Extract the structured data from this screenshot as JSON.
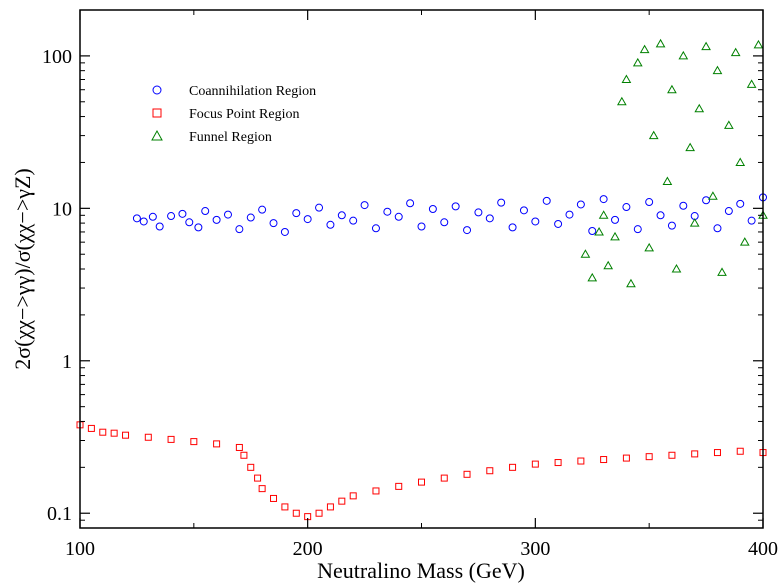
{
  "chart_data": {
    "type": "scatter",
    "title": "",
    "xlabel": "Neutralino Mass (GeV)",
    "ylabel": "2σ(χχ−>γγ)/σ(χχ−>γZ)",
    "xlim": [
      100,
      400
    ],
    "ylim": [
      0.08,
      200
    ],
    "yscale": "log",
    "grid": false,
    "legend_position": "upper-left",
    "x_ticks": [
      100,
      200,
      300,
      400
    ],
    "x_tick_labels": [
      "100",
      "200",
      "300",
      "400"
    ],
    "y_ticks": [
      0.1,
      1,
      10,
      100
    ],
    "y_tick_labels": [
      "0.1",
      "1",
      "10",
      "100"
    ],
    "series": [
      {
        "name": "Coannihilation Region",
        "marker": "circle",
        "color": "#0000ff",
        "x_range": [
          125,
          400
        ],
        "y_range": [
          6.5,
          12
        ],
        "points": [
          [
            125,
            8.6
          ],
          [
            128,
            8.2
          ],
          [
            132,
            8.8
          ],
          [
            135,
            7.6
          ],
          [
            140,
            8.9
          ],
          [
            145,
            9.2
          ],
          [
            148,
            8.1
          ],
          [
            152,
            7.5
          ],
          [
            155,
            9.6
          ],
          [
            160,
            8.4
          ],
          [
            165,
            9.1
          ],
          [
            170,
            7.3
          ],
          [
            175,
            8.7
          ],
          [
            180,
            9.8
          ],
          [
            185,
            8.0
          ],
          [
            190,
            7.0
          ],
          [
            195,
            9.3
          ],
          [
            200,
            8.5
          ],
          [
            205,
            10.1
          ],
          [
            210,
            7.8
          ],
          [
            215,
            9.0
          ],
          [
            220,
            8.3
          ],
          [
            225,
            10.5
          ],
          [
            230,
            7.4
          ],
          [
            235,
            9.5
          ],
          [
            240,
            8.8
          ],
          [
            245,
            10.8
          ],
          [
            250,
            7.6
          ],
          [
            255,
            9.9
          ],
          [
            260,
            8.1
          ],
          [
            265,
            10.3
          ],
          [
            270,
            7.2
          ],
          [
            275,
            9.4
          ],
          [
            280,
            8.6
          ],
          [
            285,
            10.9
          ],
          [
            290,
            7.5
          ],
          [
            295,
            9.7
          ],
          [
            300,
            8.2
          ],
          [
            305,
            11.2
          ],
          [
            310,
            7.9
          ],
          [
            315,
            9.1
          ],
          [
            320,
            10.6
          ],
          [
            325,
            7.1
          ],
          [
            330,
            11.5
          ],
          [
            335,
            8.4
          ],
          [
            340,
            10.2
          ],
          [
            345,
            7.3
          ],
          [
            350,
            11.0
          ],
          [
            355,
            9.0
          ],
          [
            360,
            7.7
          ],
          [
            365,
            10.4
          ],
          [
            370,
            8.9
          ],
          [
            375,
            11.3
          ],
          [
            380,
            7.4
          ],
          [
            385,
            9.6
          ],
          [
            390,
            10.7
          ],
          [
            395,
            8.3
          ],
          [
            400,
            11.8
          ]
        ]
      },
      {
        "name": "Focus Point Region",
        "marker": "square",
        "color": "#ff0000",
        "x_range": [
          100,
          400
        ],
        "y_range": [
          0.09,
          0.39
        ],
        "points": [
          [
            100,
            0.38
          ],
          [
            105,
            0.36
          ],
          [
            110,
            0.34
          ],
          [
            115,
            0.335
          ],
          [
            120,
            0.325
          ],
          [
            130,
            0.315
          ],
          [
            140,
            0.305
          ],
          [
            150,
            0.295
          ],
          [
            160,
            0.285
          ],
          [
            170,
            0.27
          ],
          [
            172,
            0.24
          ],
          [
            175,
            0.2
          ],
          [
            178,
            0.17
          ],
          [
            180,
            0.145
          ],
          [
            185,
            0.125
          ],
          [
            190,
            0.11
          ],
          [
            195,
            0.1
          ],
          [
            200,
            0.095
          ],
          [
            205,
            0.1
          ],
          [
            210,
            0.11
          ],
          [
            215,
            0.12
          ],
          [
            220,
            0.13
          ],
          [
            230,
            0.14
          ],
          [
            240,
            0.15
          ],
          [
            250,
            0.16
          ],
          [
            260,
            0.17
          ],
          [
            270,
            0.18
          ],
          [
            280,
            0.19
          ],
          [
            290,
            0.2
          ],
          [
            300,
            0.21
          ],
          [
            310,
            0.215
          ],
          [
            320,
            0.22
          ],
          [
            330,
            0.225
          ],
          [
            340,
            0.23
          ],
          [
            350,
            0.235
          ],
          [
            360,
            0.24
          ],
          [
            370,
            0.245
          ],
          [
            380,
            0.25
          ],
          [
            390,
            0.255
          ],
          [
            400,
            0.25
          ]
        ]
      },
      {
        "name": "Funnel Region",
        "marker": "triangle",
        "color": "#008000",
        "x_range": [
          320,
          400
        ],
        "y_range": [
          3,
          120
        ],
        "points": [
          [
            322,
            5.0
          ],
          [
            325,
            3.5
          ],
          [
            328,
            7.0
          ],
          [
            330,
            9.0
          ],
          [
            332,
            4.2
          ],
          [
            335,
            6.5
          ],
          [
            338,
            50.0
          ],
          [
            340,
            70.0
          ],
          [
            342,
            3.2
          ],
          [
            345,
            90.0
          ],
          [
            348,
            110.0
          ],
          [
            350,
            5.5
          ],
          [
            352,
            30.0
          ],
          [
            355,
            120.0
          ],
          [
            358,
            15.0
          ],
          [
            360,
            60.0
          ],
          [
            362,
            4.0
          ],
          [
            365,
            100.0
          ],
          [
            368,
            25.0
          ],
          [
            370,
            8.0
          ],
          [
            372,
            45.0
          ],
          [
            375,
            115.0
          ],
          [
            378,
            12.0
          ],
          [
            380,
            80.0
          ],
          [
            382,
            3.8
          ],
          [
            385,
            35.0
          ],
          [
            388,
            105.0
          ],
          [
            390,
            20.0
          ],
          [
            392,
            6.0
          ],
          [
            395,
            65.0
          ],
          [
            398,
            118.0
          ],
          [
            400,
            9.0
          ]
        ]
      }
    ]
  }
}
